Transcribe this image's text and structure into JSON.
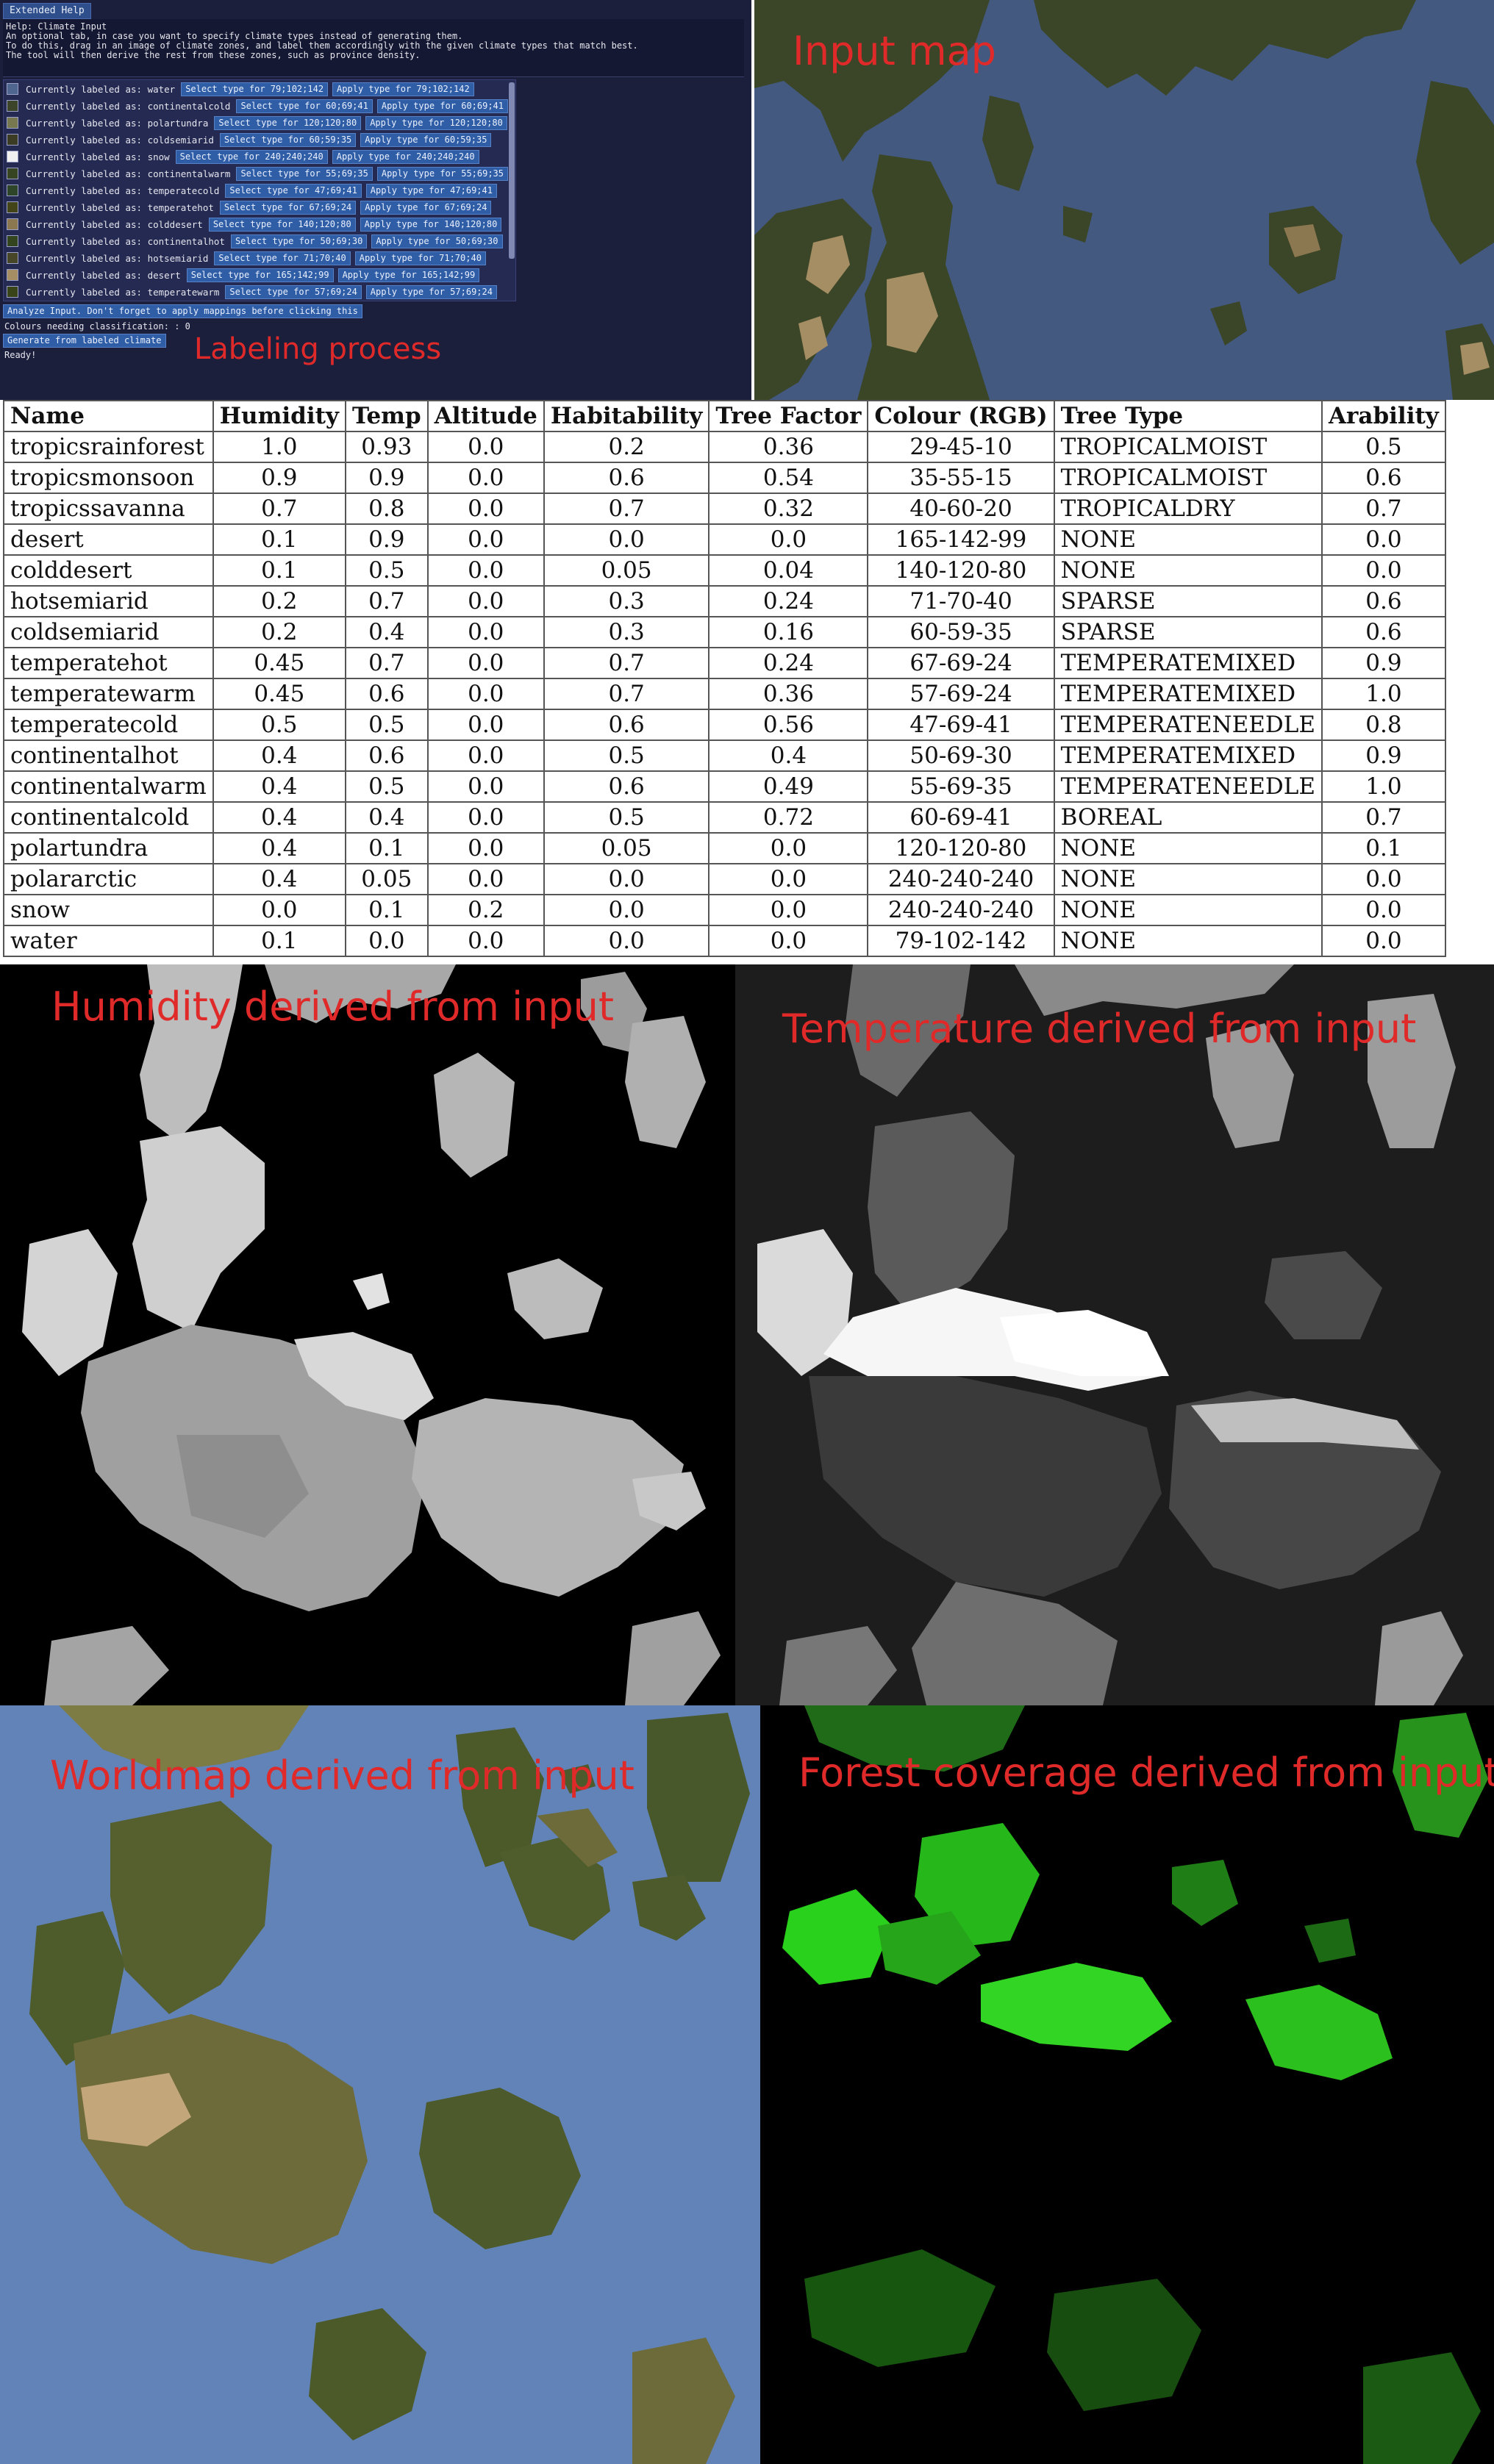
{
  "tool_panel": {
    "tab_label": "Extended Help",
    "help_lines": [
      "Help: Climate Input",
      "An optional tab, in case you want to specify climate types instead of generating them.",
      "To do this, drag in an image of climate zones, and label them accordingly with the given climate types that match best.",
      "The tool will then derive the rest from these zones, such as province density."
    ],
    "zones": [
      {
        "label": "Currently labeled as: water",
        "select": "Select type for 79;102;142",
        "apply": "Apply type for 79;102;142",
        "color": "#4f668e"
      },
      {
        "label": "Currently labeled as: continentalcold",
        "select": "Select type for 60;69;41",
        "apply": "Apply type for 60;69;41",
        "color": "#3c4529"
      },
      {
        "label": "Currently labeled as: polartundra",
        "select": "Select type for 120;120;80",
        "apply": "Apply type for 120;120;80",
        "color": "#787850"
      },
      {
        "label": "Currently labeled as: coldsemiarid",
        "select": "Select type for 60;59;35",
        "apply": "Apply type for 60;59;35",
        "color": "#3c3b23"
      },
      {
        "label": "Currently labeled as: snow",
        "select": "Select type for 240;240;240",
        "apply": "Apply type for 240;240;240",
        "color": "#f0f0f0"
      },
      {
        "label": "Currently labeled as: continentalwarm",
        "select": "Select type for 55;69;35",
        "apply": "Apply type for 55;69;35",
        "color": "#374523"
      },
      {
        "label": "Currently labeled as: temperatecold",
        "select": "Select type for 47;69;41",
        "apply": "Apply type for 47;69;41",
        "color": "#2f4529"
      },
      {
        "label": "Currently labeled as: temperatehot",
        "select": "Select type for 67;69;24",
        "apply": "Apply type for 67;69;24",
        "color": "#434518"
      },
      {
        "label": "Currently labeled as: colddesert",
        "select": "Select type for 140;120;80",
        "apply": "Apply type for 140;120;80",
        "color": "#8c7850"
      },
      {
        "label": "Currently labeled as: continentalhot",
        "select": "Select type for 50;69;30",
        "apply": "Apply type for 50;69;30",
        "color": "#32451e"
      },
      {
        "label": "Currently labeled as: hotsemiarid",
        "select": "Select type for 71;70;40",
        "apply": "Apply type for 71;70;40",
        "color": "#474628"
      },
      {
        "label": "Currently labeled as: desert",
        "select": "Select type for 165;142;99",
        "apply": "Apply type for 165;142;99",
        "color": "#a58e63"
      },
      {
        "label": "Currently labeled as: temperatewarm",
        "select": "Select type for 57;69;24",
        "apply": "Apply type for 57;69;24",
        "color": "#394518"
      }
    ],
    "analyze_label": "Analyze Input. Don't forget to apply mappings before clicking this",
    "colours_needing": "Colours needing classification: : 0",
    "generate_label": "Generate from labeled climate",
    "status": "Ready!",
    "overlay_label": "Labeling process"
  },
  "input_map": {
    "label": "Input map"
  },
  "climate_table": {
    "headers": [
      "Name",
      "Humidity",
      "Temp",
      "Altitude",
      "Habitability",
      "Tree Factor",
      "Colour (RGB)",
      "Tree Type",
      "Arability"
    ],
    "rows": [
      [
        "tropicsrainforest",
        "1.0",
        "0.93",
        "0.0",
        "0.2",
        "0.36",
        "29-45-10",
        "TROPICALMOIST",
        "0.5"
      ],
      [
        "tropicsmonsoon",
        "0.9",
        "0.9",
        "0.0",
        "0.6",
        "0.54",
        "35-55-15",
        "TROPICALMOIST",
        "0.6"
      ],
      [
        "tropicssavanna",
        "0.7",
        "0.8",
        "0.0",
        "0.7",
        "0.32",
        "40-60-20",
        "TROPICALDRY",
        "0.7"
      ],
      [
        "desert",
        "0.1",
        "0.9",
        "0.0",
        "0.0",
        "0.0",
        "165-142-99",
        "NONE",
        "0.0"
      ],
      [
        "colddesert",
        "0.1",
        "0.5",
        "0.0",
        "0.05",
        "0.04",
        "140-120-80",
        "NONE",
        "0.0"
      ],
      [
        "hotsemiarid",
        "0.2",
        "0.7",
        "0.0",
        "0.3",
        "0.24",
        "71-70-40",
        "SPARSE",
        "0.6"
      ],
      [
        "coldsemiarid",
        "0.2",
        "0.4",
        "0.0",
        "0.3",
        "0.16",
        "60-59-35",
        "SPARSE",
        "0.6"
      ],
      [
        "temperatehot",
        "0.45",
        "0.7",
        "0.0",
        "0.7",
        "0.24",
        "67-69-24",
        "TEMPERATEMIXED",
        "0.9"
      ],
      [
        "temperatewarm",
        "0.45",
        "0.6",
        "0.0",
        "0.7",
        "0.36",
        "57-69-24",
        "TEMPERATEMIXED",
        "1.0"
      ],
      [
        "temperatecold",
        "0.5",
        "0.5",
        "0.0",
        "0.6",
        "0.56",
        "47-69-41",
        "TEMPERATENEEDLE",
        "0.8"
      ],
      [
        "continentalhot",
        "0.4",
        "0.6",
        "0.0",
        "0.5",
        "0.4",
        "50-69-30",
        "TEMPERATEMIXED",
        "0.9"
      ],
      [
        "continentalwarm",
        "0.4",
        "0.5",
        "0.0",
        "0.6",
        "0.49",
        "55-69-35",
        "TEMPERATENEEDLE",
        "1.0"
      ],
      [
        "continentalcold",
        "0.4",
        "0.4",
        "0.0",
        "0.5",
        "0.72",
        "60-69-41",
        "BOREAL",
        "0.7"
      ],
      [
        "polartundra",
        "0.4",
        "0.1",
        "0.0",
        "0.05",
        "0.0",
        "120-120-80",
        "NONE",
        "0.1"
      ],
      [
        "polararctic",
        "0.4",
        "0.05",
        "0.0",
        "0.0",
        "0.0",
        "240-240-240",
        "NONE",
        "0.0"
      ],
      [
        "snow",
        "0.0",
        "0.1",
        "0.2",
        "0.0",
        "0.0",
        "240-240-240",
        "NONE",
        "0.0"
      ],
      [
        "water",
        "0.1",
        "0.0",
        "0.0",
        "0.0",
        "0.0",
        "79-102-142",
        "NONE",
        "0.0"
      ]
    ]
  },
  "humidity_map": {
    "label": "Humidity derived from input"
  },
  "temperature_map": {
    "label": "Temperature derived from input"
  },
  "world_map": {
    "label": "Worldmap derived from input"
  },
  "forest_map": {
    "label": "Forest coverage derived from input"
  },
  "colors": {
    "panel_bg": "#1c1f3c",
    "button_blue": "#2f5da6",
    "overlay_red": "#e02a2a",
    "water_input": "#43597f",
    "land_input": "#3b4527",
    "desert_input": "#a58e63",
    "world_water": "#6283b8",
    "forest_green": "#22c81a"
  }
}
